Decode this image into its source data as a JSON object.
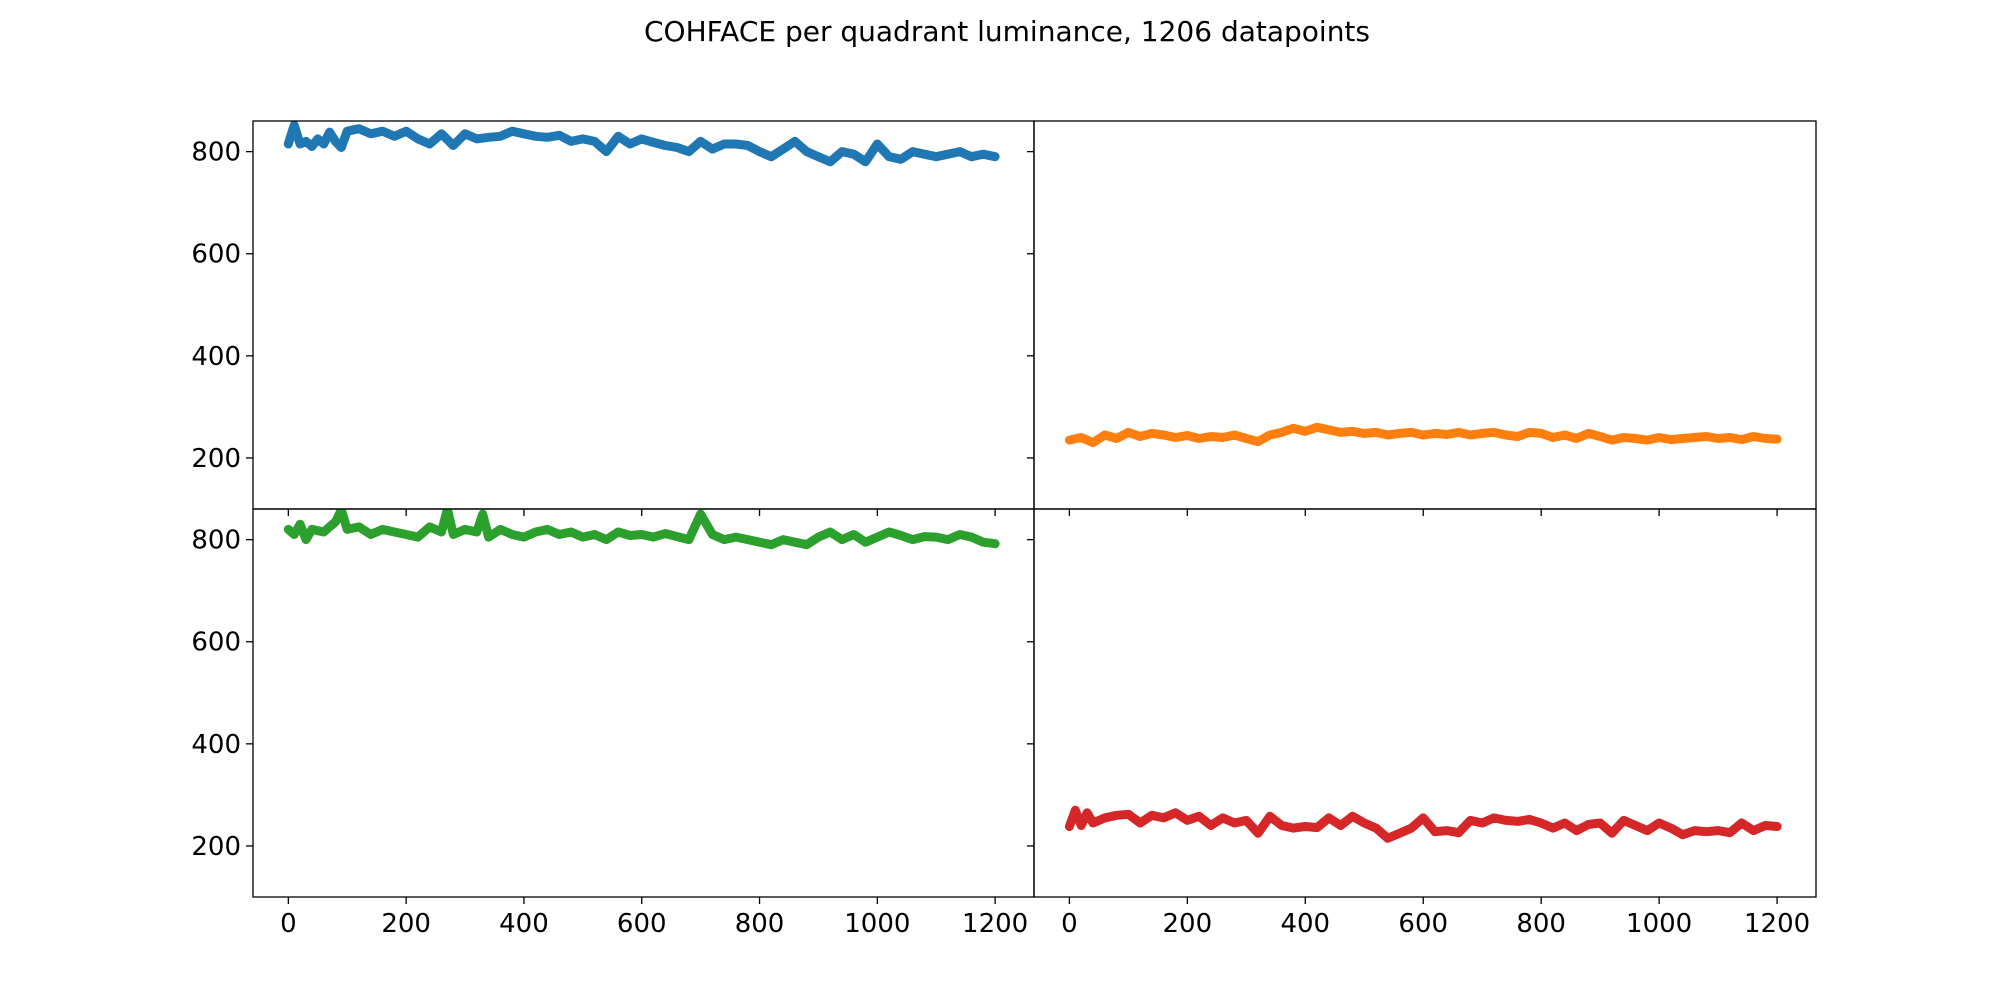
{
  "figure": {
    "title": "COHFACE per quadrant luminance, 1206 datapoints"
  },
  "chart_data": {
    "type": "line",
    "title": "COHFACE per quadrant luminance, 1206 datapoints",
    "layout": "2x2 subplots, shared x and y axes, no spacing",
    "xlim": [
      -60,
      1266
    ],
    "ylim": [
      100,
      860
    ],
    "x_ticks": [
      0,
      200,
      400,
      600,
      800,
      1000,
      1200
    ],
    "y_ticks": [
      200,
      400,
      600,
      800
    ],
    "grid": false,
    "legend": "none",
    "series": [
      {
        "panel": "top-left",
        "color": "#1f77b4",
        "x": [
          0,
          10,
          20,
          30,
          40,
          50,
          60,
          70,
          80,
          90,
          100,
          120,
          140,
          160,
          180,
          200,
          220,
          240,
          260,
          280,
          300,
          320,
          340,
          360,
          380,
          400,
          420,
          440,
          460,
          480,
          500,
          520,
          540,
          560,
          580,
          600,
          620,
          640,
          660,
          680,
          700,
          720,
          740,
          760,
          780,
          800,
          820,
          840,
          860,
          880,
          900,
          920,
          940,
          960,
          980,
          1000,
          1020,
          1040,
          1060,
          1080,
          1100,
          1120,
          1140,
          1160,
          1180,
          1200
        ],
        "y": [
          815,
          852,
          815,
          820,
          810,
          825,
          815,
          838,
          820,
          808,
          840,
          845,
          835,
          840,
          830,
          840,
          825,
          815,
          835,
          812,
          835,
          825,
          828,
          830,
          840,
          835,
          830,
          828,
          832,
          820,
          825,
          820,
          800,
          830,
          815,
          825,
          818,
          812,
          808,
          800,
          820,
          805,
          815,
          815,
          812,
          800,
          790,
          805,
          820,
          800,
          790,
          780,
          800,
          795,
          780,
          815,
          790,
          785,
          800,
          795,
          790,
          795,
          800,
          790,
          795,
          790
        ]
      },
      {
        "panel": "top-right",
        "color": "#ff7f0e",
        "x": [
          0,
          20,
          40,
          60,
          80,
          100,
          120,
          140,
          160,
          180,
          200,
          220,
          240,
          260,
          280,
          300,
          320,
          340,
          360,
          380,
          400,
          420,
          440,
          460,
          480,
          500,
          520,
          540,
          560,
          580,
          600,
          620,
          640,
          660,
          680,
          700,
          720,
          740,
          760,
          780,
          800,
          820,
          840,
          860,
          880,
          900,
          920,
          940,
          960,
          980,
          1000,
          1020,
          1040,
          1060,
          1080,
          1100,
          1120,
          1140,
          1160,
          1180,
          1200
        ],
        "y": [
          235,
          240,
          230,
          245,
          238,
          250,
          242,
          248,
          245,
          240,
          244,
          238,
          242,
          240,
          245,
          238,
          232,
          245,
          250,
          258,
          252,
          260,
          255,
          250,
          252,
          248,
          250,
          245,
          248,
          250,
          245,
          248,
          246,
          250,
          245,
          248,
          250,
          245,
          242,
          250,
          248,
          240,
          245,
          238,
          248,
          242,
          235,
          240,
          238,
          235,
          240,
          236,
          238,
          240,
          242,
          238,
          240,
          236,
          242,
          238,
          237
        ]
      },
      {
        "panel": "bottom-left",
        "color": "#2ca02c",
        "x": [
          0,
          10,
          20,
          30,
          40,
          60,
          80,
          90,
          100,
          120,
          140,
          160,
          180,
          200,
          220,
          240,
          260,
          270,
          280,
          300,
          320,
          330,
          340,
          360,
          380,
          400,
          420,
          440,
          460,
          480,
          500,
          520,
          540,
          560,
          580,
          600,
          620,
          640,
          660,
          680,
          700,
          720,
          740,
          760,
          780,
          800,
          820,
          840,
          860,
          880,
          900,
          920,
          940,
          960,
          980,
          1000,
          1020,
          1040,
          1060,
          1080,
          1100,
          1120,
          1140,
          1160,
          1180,
          1200
        ],
        "y": [
          820,
          810,
          830,
          800,
          820,
          815,
          835,
          858,
          820,
          825,
          810,
          820,
          815,
          810,
          805,
          825,
          815,
          860,
          810,
          820,
          815,
          850,
          805,
          820,
          810,
          805,
          815,
          820,
          810,
          815,
          805,
          810,
          800,
          815,
          808,
          810,
          805,
          812,
          806,
          800,
          850,
          810,
          800,
          805,
          800,
          795,
          790,
          800,
          795,
          790,
          805,
          815,
          800,
          810,
          795,
          805,
          815,
          808,
          800,
          806,
          805,
          800,
          810,
          805,
          795,
          792
        ]
      },
      {
        "panel": "bottom-right",
        "color": "#d62728",
        "x": [
          0,
          10,
          20,
          30,
          40,
          60,
          80,
          100,
          120,
          140,
          160,
          180,
          200,
          220,
          240,
          260,
          280,
          300,
          320,
          340,
          360,
          380,
          400,
          420,
          440,
          460,
          480,
          500,
          520,
          540,
          560,
          580,
          600,
          620,
          640,
          660,
          680,
          700,
          720,
          740,
          760,
          780,
          800,
          820,
          840,
          860,
          880,
          900,
          920,
          940,
          960,
          980,
          1000,
          1020,
          1040,
          1060,
          1080,
          1100,
          1120,
          1140,
          1160,
          1180,
          1200
        ],
        "y": [
          238,
          270,
          240,
          265,
          245,
          255,
          260,
          262,
          245,
          260,
          255,
          265,
          250,
          258,
          240,
          255,
          245,
          250,
          225,
          258,
          240,
          235,
          238,
          236,
          255,
          240,
          258,
          245,
          235,
          215,
          225,
          235,
          255,
          228,
          230,
          226,
          250,
          245,
          255,
          250,
          248,
          252,
          245,
          235,
          245,
          230,
          242,
          245,
          225,
          250,
          240,
          230,
          245,
          235,
          222,
          230,
          228,
          230,
          226,
          245,
          230,
          240,
          238
        ]
      }
    ]
  }
}
